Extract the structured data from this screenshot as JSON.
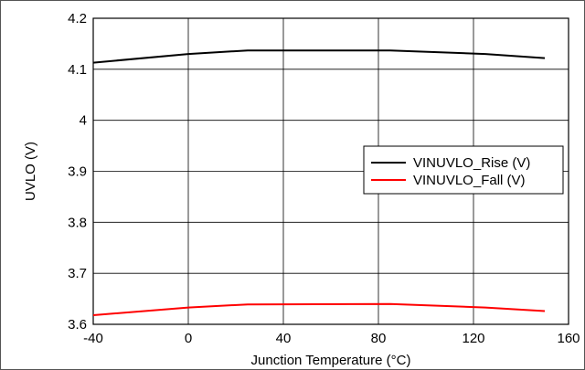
{
  "chart_data": {
    "type": "line",
    "xlabel": "Junction Temperature (°C)",
    "ylabel": "UVLO (V)",
    "xlim": [
      -40,
      160
    ],
    "ylim": [
      3.6,
      4.2
    ],
    "x_ticks": [
      "-40",
      "0",
      "40",
      "80",
      "120",
      "160"
    ],
    "y_ticks": [
      "3.6",
      "3.7",
      "3.8",
      "3.9",
      "4",
      "4.1",
      "4.2"
    ],
    "grid": true,
    "legend_position": "right",
    "series": [
      {
        "name": "VINUVLO_Rise (V)",
        "color": "#000000",
        "x": [
          -40,
          0,
          25,
          85,
          125,
          150
        ],
        "y": [
          4.113,
          4.13,
          4.137,
          4.137,
          4.13,
          4.122
        ]
      },
      {
        "name": "VINUVLO_Fall (V)",
        "color": "#ff0000",
        "x": [
          -40,
          0,
          25,
          85,
          125,
          150
        ],
        "y": [
          3.618,
          3.633,
          3.639,
          3.64,
          3.633,
          3.626
        ]
      }
    ]
  }
}
